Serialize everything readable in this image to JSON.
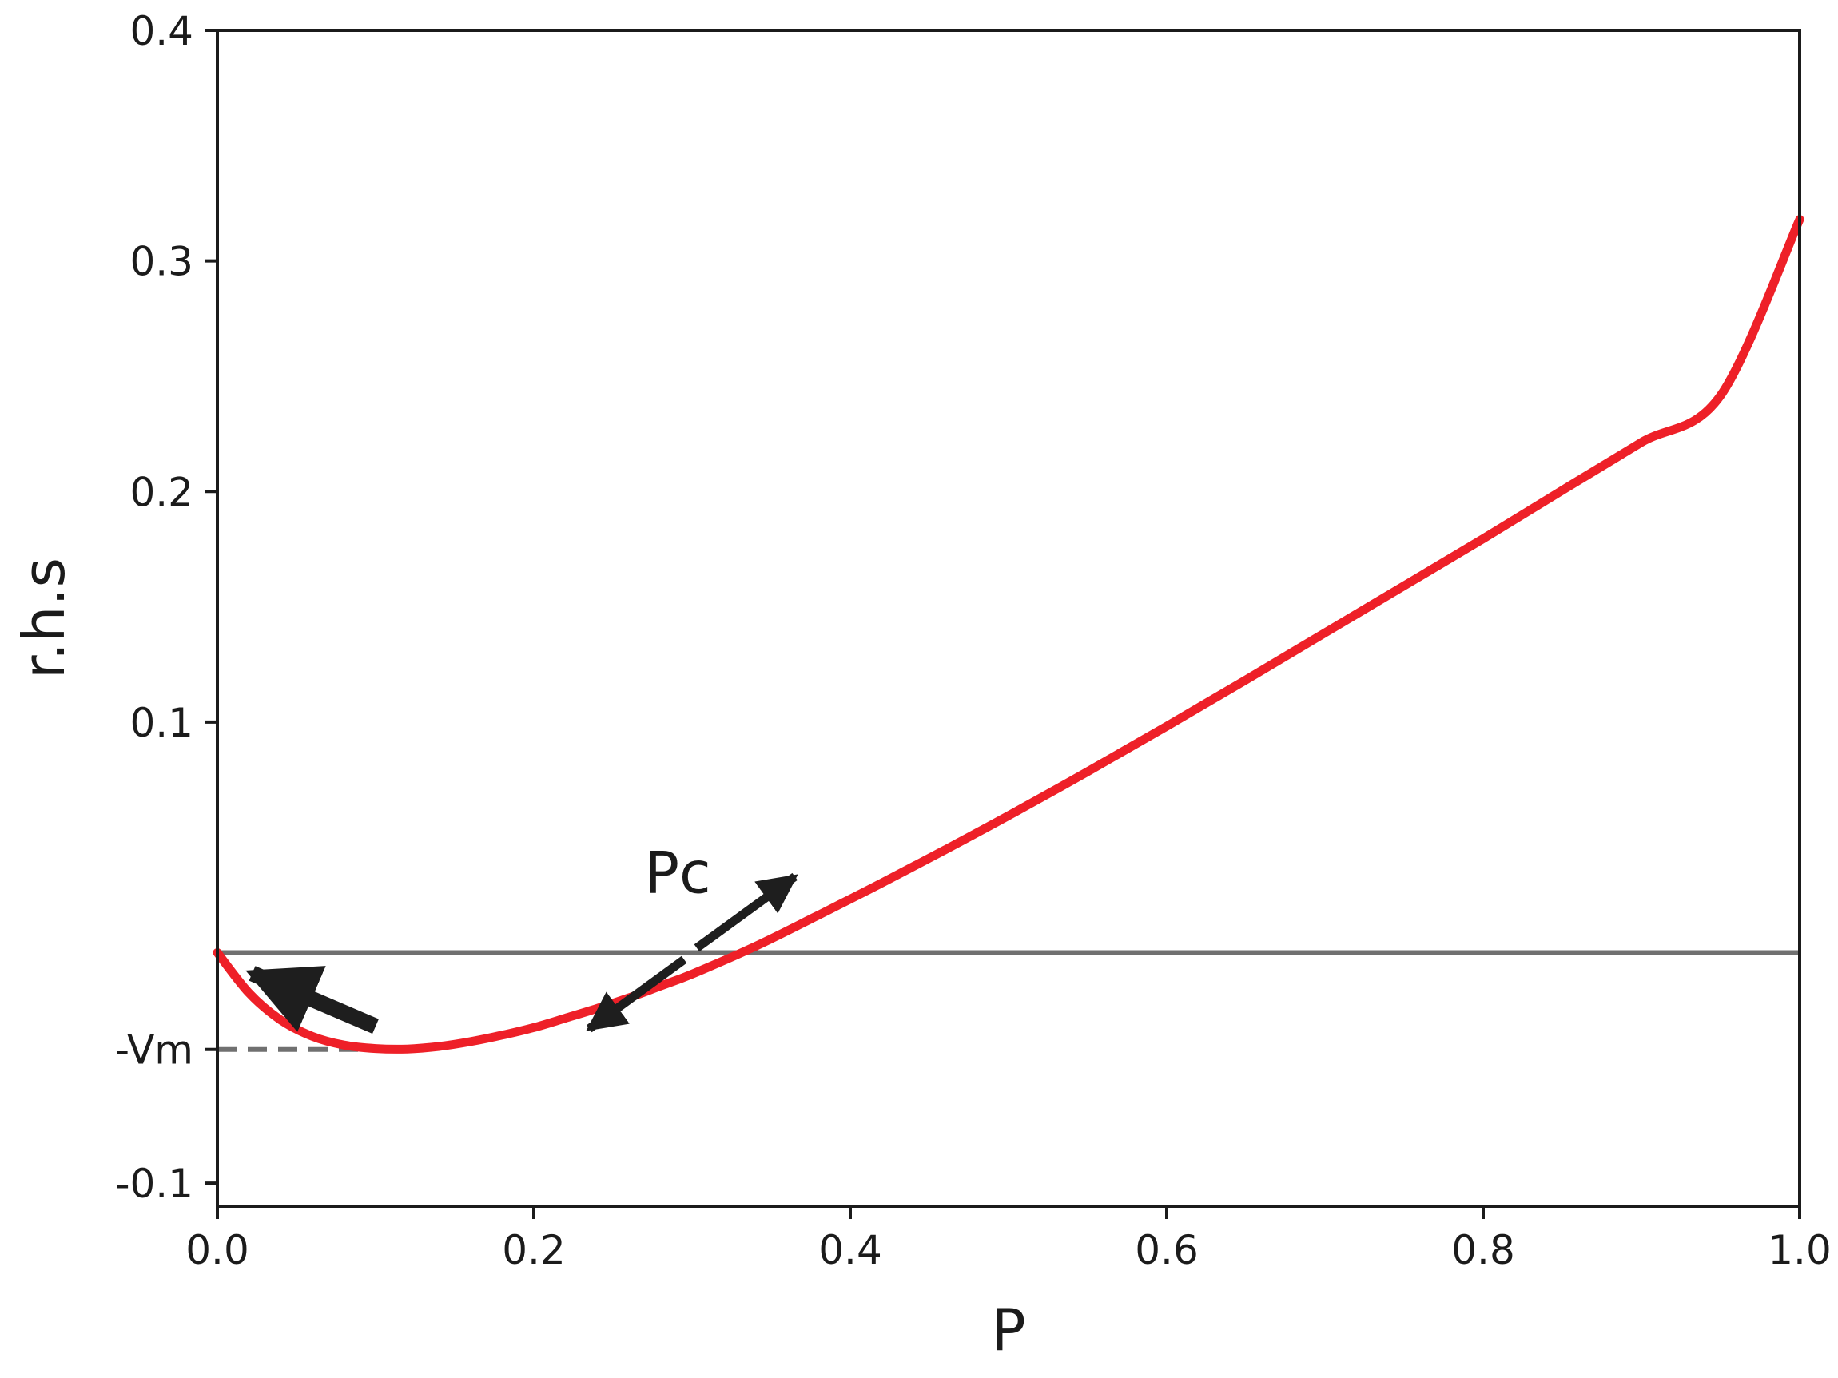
{
  "chart_data": {
    "type": "line",
    "xlabel": "P",
    "ylabel": "r.h.s",
    "xlim": [
      0.0,
      1.0
    ],
    "ylim": [
      -0.11,
      0.4
    ],
    "x_ticks": [
      {
        "value": 0.0,
        "label": "0.0"
      },
      {
        "value": 0.2,
        "label": "0.2"
      },
      {
        "value": 0.4,
        "label": "0.4"
      },
      {
        "value": 0.6,
        "label": "0.6"
      },
      {
        "value": 0.8,
        "label": "0.8"
      },
      {
        "value": 1.0,
        "label": "1.0"
      }
    ],
    "y_ticks": [
      {
        "value": -0.1,
        "label": "-0.1"
      },
      {
        "value": -0.042,
        "label": "-Vm"
      },
      {
        "value": 0.1,
        "label": "0.1"
      },
      {
        "value": 0.2,
        "label": "0.2"
      },
      {
        "value": 0.3,
        "label": "0.3"
      },
      {
        "value": 0.4,
        "label": "0.4"
      }
    ],
    "grid": false,
    "series": [
      {
        "color": "#ee2028",
        "x": [
          0.0,
          0.02,
          0.04,
          0.06,
          0.08,
          0.1,
          0.12,
          0.14,
          0.16,
          0.18,
          0.2,
          0.22,
          0.24,
          0.26,
          0.28,
          0.3,
          0.34,
          0.38,
          0.42,
          0.46,
          0.5,
          0.55,
          0.6,
          0.65,
          0.7,
          0.75,
          0.8,
          0.85,
          0.9,
          0.95,
          1.0
        ],
        "y": [
          0.0,
          -0.0175,
          -0.0292,
          -0.0363,
          -0.0401,
          -0.0416,
          -0.0418,
          -0.0407,
          -0.0386,
          -0.0358,
          -0.0325,
          -0.0284,
          -0.0242,
          -0.0196,
          -0.0145,
          -0.0093,
          0.0027,
          0.0163,
          0.0302,
          0.0446,
          0.0594,
          0.0785,
          0.0982,
          0.1183,
          0.1387,
          0.1591,
          0.1795,
          0.2005,
          0.2213,
          0.2416,
          0.318
        ]
      }
    ],
    "reference_lines": [
      {
        "orientation": "horizontal",
        "y": 0.0,
        "x_range": [
          0.0,
          1.0
        ],
        "style": "solid",
        "color": "#707070"
      },
      {
        "orientation": "horizontal",
        "y": -0.042,
        "x_range": [
          0.0,
          0.12
        ],
        "style": "dashed",
        "color": "#707070"
      }
    ],
    "annotations": [
      {
        "text": "Pc",
        "x": 0.27,
        "y": 0.026
      }
    ],
    "arrows": [
      {
        "from": [
          0.1,
          -0.032
        ],
        "to": [
          0.022,
          -0.009
        ],
        "color": "#1e1e1e"
      },
      {
        "from": [
          0.303,
          0.002
        ],
        "to": [
          0.365,
          0.033
        ],
        "color": "#1e1e1e"
      },
      {
        "from": [
          0.295,
          -0.003
        ],
        "to": [
          0.235,
          -0.033
        ],
        "color": "#1e1e1e"
      }
    ]
  }
}
